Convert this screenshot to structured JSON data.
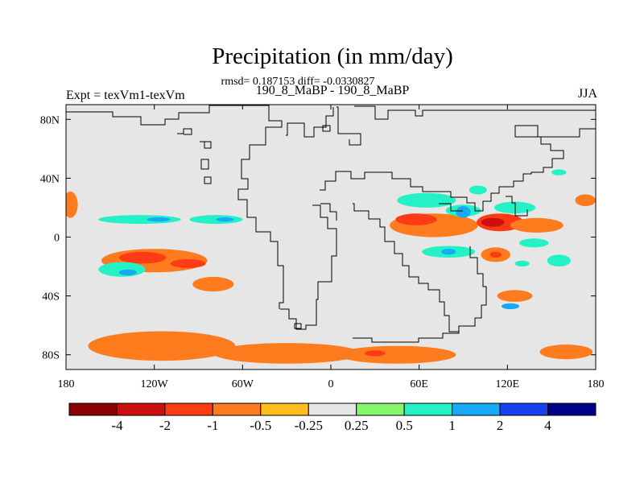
{
  "chart_data": {
    "type": "heatmap",
    "title": "Precipitation (in mm/day)",
    "subtitle": "rmsd= 0.187153 diff= -0.0330827",
    "left_label": "Expt = texVm1-texVm",
    "center_label": "190_8_MaBP - 190_8_MaBP",
    "right_label": "JJA",
    "projection": "cylindrical equidistant",
    "xlim": [
      -180,
      180
    ],
    "ylim": [
      -90,
      90
    ],
    "x_ticks": [
      {
        "value": -180,
        "label": "180"
      },
      {
        "value": -120,
        "label": "120W"
      },
      {
        "value": -60,
        "label": "60W"
      },
      {
        "value": 0,
        "label": "0"
      },
      {
        "value": 60,
        "label": "60E"
      },
      {
        "value": 120,
        "label": "120E"
      },
      {
        "value": 180,
        "label": "180"
      }
    ],
    "y_ticks": [
      {
        "value": 80,
        "label": "80N"
      },
      {
        "value": 40,
        "label": "40N"
      },
      {
        "value": 0,
        "label": "0"
      },
      {
        "value": -40,
        "label": "40S"
      },
      {
        "value": -80,
        "label": "80S"
      }
    ],
    "colorbar": {
      "boundaries": [
        "-4",
        "-2",
        "-1",
        "-0.5",
        "-0.25",
        "0.25",
        "0.5",
        "1",
        "2",
        "4"
      ],
      "colors": [
        "#8b0000",
        "#cc1010",
        "#ff3b16",
        "#ff7c1e",
        "#ffbd1e",
        "#e6e6e6",
        "#86f56a",
        "#24f2c6",
        "#16aaf6",
        "#1440ee",
        "#000088"
      ]
    },
    "regions": [
      {
        "lon": -177,
        "lat": 22,
        "rx": 5,
        "ry": 9,
        "level": -0.5
      },
      {
        "lon": -120,
        "lat": -16,
        "rx": 36,
        "ry": 8,
        "level": -0.5
      },
      {
        "lon": -128,
        "lat": -14,
        "rx": 16,
        "ry": 4,
        "level": -1
      },
      {
        "lon": -97,
        "lat": -18,
        "rx": 12,
        "ry": 3,
        "level": -1
      },
      {
        "lon": -80,
        "lat": -32,
        "rx": 14,
        "ry": 5,
        "level": -0.5
      },
      {
        "lon": -115,
        "lat": -74,
        "rx": 50,
        "ry": 10,
        "level": -0.5
      },
      {
        "lon": -30,
        "lat": -79,
        "rx": 50,
        "ry": 7,
        "level": -0.5
      },
      {
        "lon": 45,
        "lat": -80,
        "rx": 40,
        "ry": 6,
        "level": -0.5
      },
      {
        "lon": 30,
        "lat": -79,
        "rx": 7,
        "ry": 2,
        "level": -1
      },
      {
        "lon": 160,
        "lat": -78,
        "rx": 18,
        "ry": 5,
        "level": -0.5
      },
      {
        "lon": 70,
        "lat": 8,
        "rx": 30,
        "ry": 8,
        "level": -0.5
      },
      {
        "lon": 58,
        "lat": 12,
        "rx": 14,
        "ry": 4,
        "level": -1
      },
      {
        "lon": 115,
        "lat": 10,
        "rx": 16,
        "ry": 6,
        "level": -1
      },
      {
        "lon": 110,
        "lat": 10,
        "rx": 8,
        "ry": 3,
        "level": -2
      },
      {
        "lon": 140,
        "lat": 8,
        "rx": 18,
        "ry": 5,
        "level": -0.5
      },
      {
        "lon": 112,
        "lat": -12,
        "rx": 10,
        "ry": 5,
        "level": -0.5
      },
      {
        "lon": 112,
        "lat": -12,
        "rx": 4,
        "ry": 2,
        "level": -1
      },
      {
        "lon": 125,
        "lat": -40,
        "rx": 12,
        "ry": 4,
        "level": -0.5
      },
      {
        "lon": 173,
        "lat": 25,
        "rx": 7,
        "ry": 4,
        "level": -0.5
      },
      {
        "lon": -130,
        "lat": 12,
        "rx": 28,
        "ry": 3,
        "level": 0.5
      },
      {
        "lon": -78,
        "lat": 12,
        "rx": 18,
        "ry": 3,
        "level": 0.5
      },
      {
        "lon": -117,
        "lat": 12,
        "rx": 8,
        "ry": 1.5,
        "level": 1
      },
      {
        "lon": -72,
        "lat": 12,
        "rx": 6,
        "ry": 1.5,
        "level": 1
      },
      {
        "lon": -142,
        "lat": -22,
        "rx": 16,
        "ry": 5,
        "level": 0.5
      },
      {
        "lon": -138,
        "lat": -24,
        "rx": 6,
        "ry": 2,
        "level": 1
      },
      {
        "lon": 65,
        "lat": 25,
        "rx": 20,
        "ry": 5,
        "level": 0.5
      },
      {
        "lon": 90,
        "lat": 18,
        "rx": 12,
        "ry": 4,
        "level": 0.5
      },
      {
        "lon": 90,
        "lat": 17,
        "rx": 5,
        "ry": 4,
        "level": 1
      },
      {
        "lon": 125,
        "lat": 20,
        "rx": 14,
        "ry": 4,
        "level": 0.5
      },
      {
        "lon": 100,
        "lat": 32,
        "rx": 6,
        "ry": 3,
        "level": 0.5
      },
      {
        "lon": 80,
        "lat": -10,
        "rx": 18,
        "ry": 4,
        "level": 0.5
      },
      {
        "lon": 80,
        "lat": -10,
        "rx": 5,
        "ry": 2,
        "level": 1
      },
      {
        "lon": 138,
        "lat": -4,
        "rx": 10,
        "ry": 3,
        "level": 0.5
      },
      {
        "lon": 155,
        "lat": -16,
        "rx": 8,
        "ry": 4,
        "level": 0.5
      },
      {
        "lon": 130,
        "lat": -18,
        "rx": 5,
        "ry": 2,
        "level": 0.5
      },
      {
        "lon": 122,
        "lat": -47,
        "rx": 6,
        "ry": 2,
        "level": 1
      },
      {
        "lon": 155,
        "lat": 44,
        "rx": 5,
        "ry": 2,
        "level": 0.5
      }
    ]
  }
}
